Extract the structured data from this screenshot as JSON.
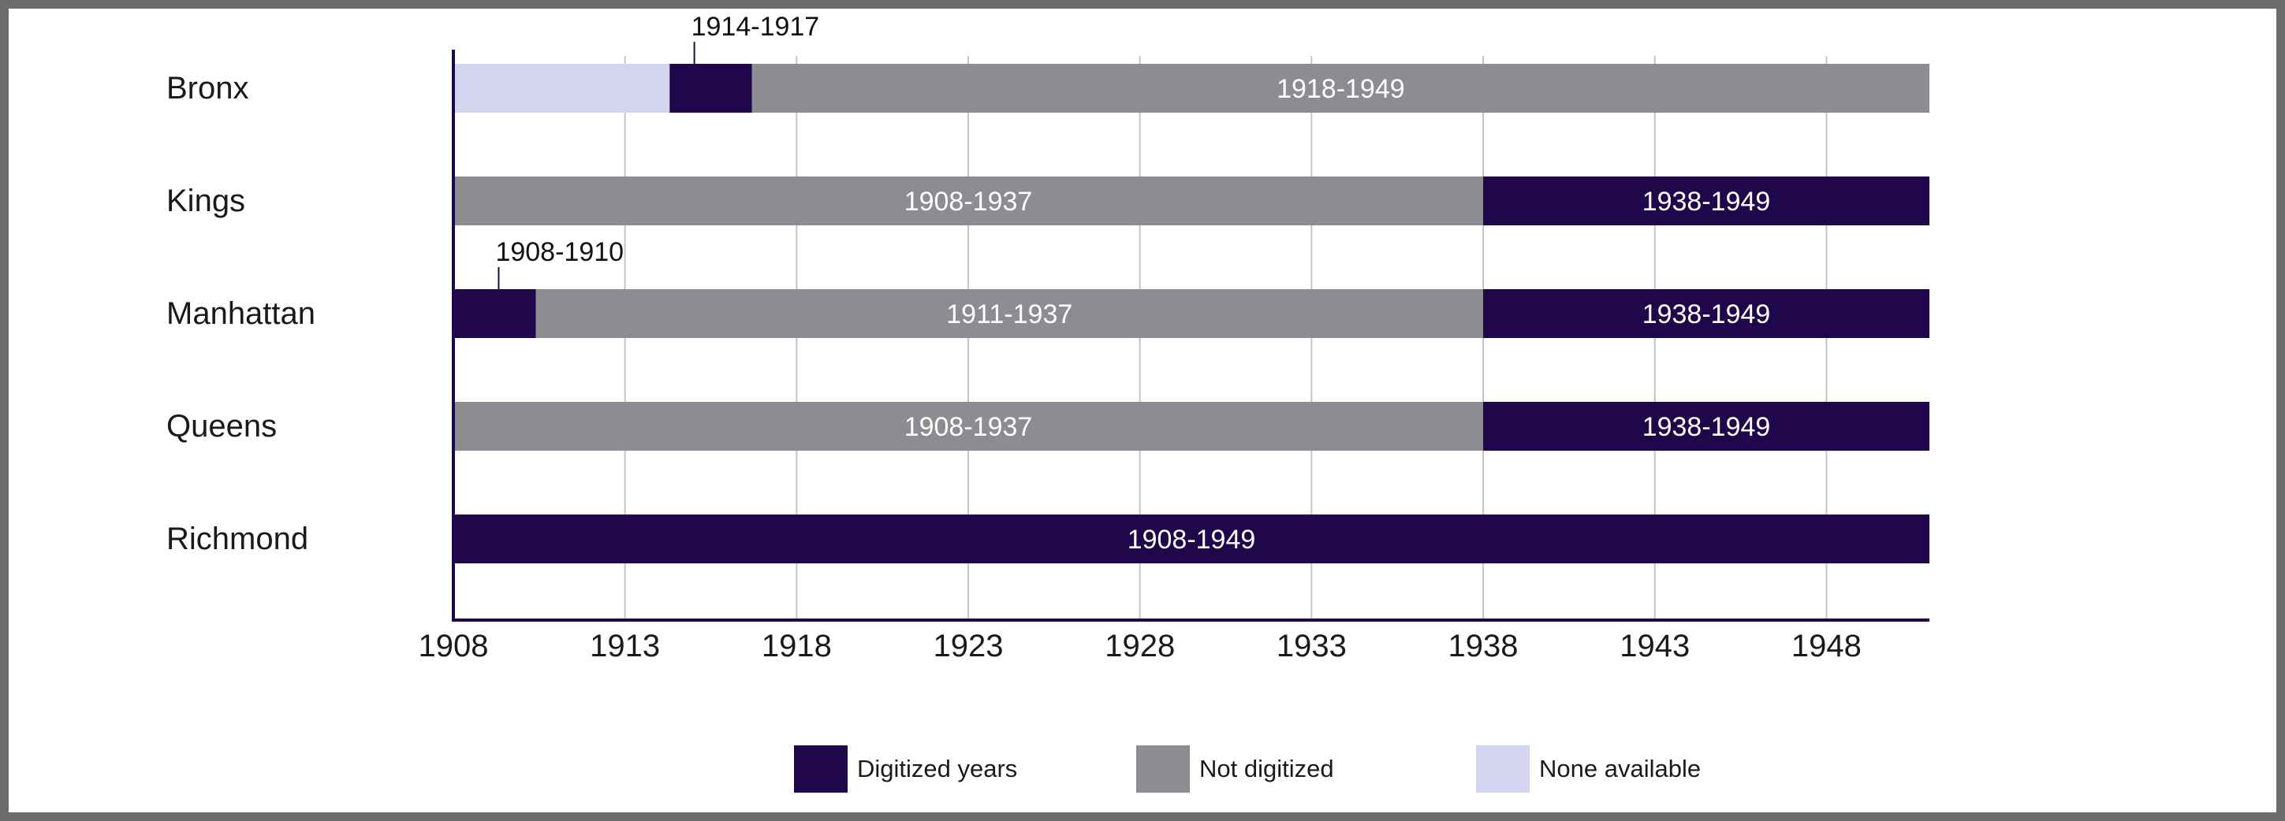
{
  "chart_data": {
    "type": "timeline",
    "xlim": [
      1908,
      1951
    ],
    "x_ticks": [
      1908,
      1913,
      1918,
      1923,
      1928,
      1933,
      1938,
      1943,
      1948
    ],
    "grid": true,
    "legend_position": "bottom-center",
    "colors": {
      "digitized": "#20064a",
      "not_digitized": "#8c8c91",
      "none_available": "#d2d4f0"
    },
    "legend": [
      {
        "key": "digitized",
        "label": "Digitized years"
      },
      {
        "key": "not_digitized",
        "label": "Not digitized"
      },
      {
        "key": "none_available",
        "label": "None available"
      }
    ],
    "rows": [
      {
        "name": "Bronx",
        "segments": [
          {
            "start": 1908,
            "end": 1914.3,
            "status": "none_available",
            "label": ""
          },
          {
            "start": 1914.3,
            "end": 1916.7,
            "status": "digitized",
            "label": "1914-1917",
            "label_above": true
          },
          {
            "start": 1916.7,
            "end": 1951,
            "status": "not_digitized",
            "label": "1918-1949"
          }
        ]
      },
      {
        "name": "Kings",
        "segments": [
          {
            "start": 1908,
            "end": 1938,
            "status": "not_digitized",
            "label": "1908-1937"
          },
          {
            "start": 1938,
            "end": 1951,
            "status": "digitized",
            "label": "1938-1949"
          }
        ]
      },
      {
        "name": "Manhattan",
        "segments": [
          {
            "start": 1908,
            "end": 1910.4,
            "status": "digitized",
            "label": "1908-1910",
            "label_above": true
          },
          {
            "start": 1910.4,
            "end": 1938,
            "status": "not_digitized",
            "label": "1911-1937"
          },
          {
            "start": 1938,
            "end": 1951,
            "status": "digitized",
            "label": "1938-1949"
          }
        ]
      },
      {
        "name": "Queens",
        "segments": [
          {
            "start": 1908,
            "end": 1938,
            "status": "not_digitized",
            "label": "1908-1937"
          },
          {
            "start": 1938,
            "end": 1951,
            "status": "digitized",
            "label": "1938-1949"
          }
        ]
      },
      {
        "name": "Richmond",
        "segments": [
          {
            "start": 1908,
            "end": 1951,
            "status": "digitized",
            "label": "1908-1949"
          }
        ]
      }
    ]
  }
}
